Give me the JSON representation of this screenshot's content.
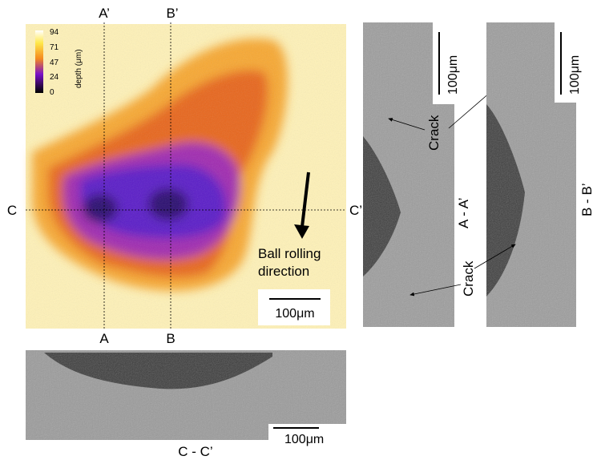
{
  "depth_map": {
    "colorbar": {
      "ticks": [
        "94",
        "71",
        "47",
        "24",
        "0"
      ],
      "label": "depth (μm)"
    },
    "section_labels": {
      "a_top": "A’",
      "b_top": "B’",
      "a_bottom": "A",
      "b_bottom": "B",
      "c_left": "C",
      "c_right": "C’"
    },
    "annotation": "Ball rolling\ndirection",
    "scale_bar": "100μm"
  },
  "section_cc": {
    "caption": "C - C’",
    "scale_bar": "100μm"
  },
  "section_aa": {
    "caption": "A - A’",
    "scale_bar": "100μm",
    "crack_label": "Crack"
  },
  "section_bb": {
    "caption": "B - B’",
    "scale_bar": "100μm",
    "crack_label": "Crack"
  }
}
